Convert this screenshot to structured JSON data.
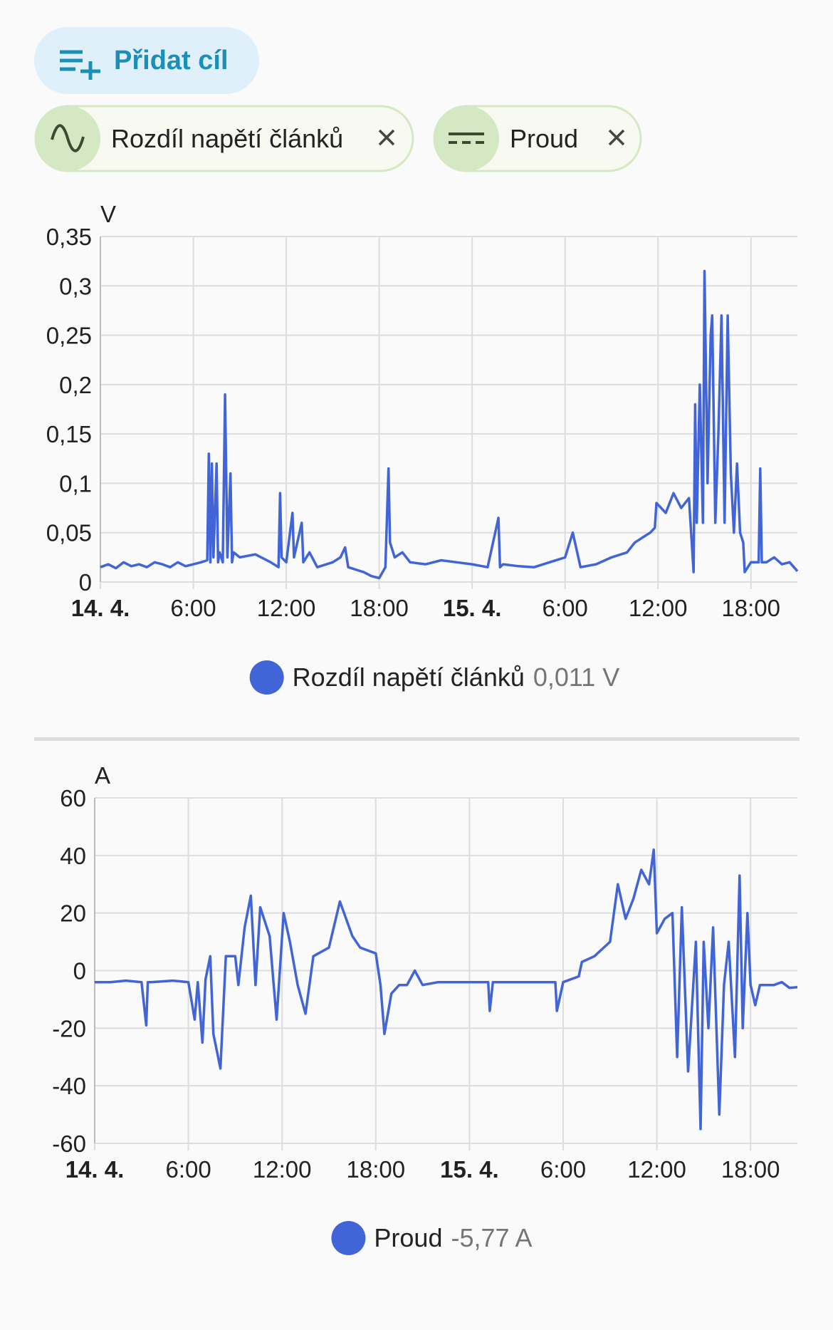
{
  "button": {
    "label": "Přidat cíl"
  },
  "chips": [
    {
      "label": "Rozdíl napětí článků"
    },
    {
      "label": "Proud"
    }
  ],
  "chart_data": [
    {
      "type": "line",
      "y_label": "V",
      "color": "#4164d6",
      "grid": true,
      "xlim": [
        0,
        45
      ],
      "xticks": [
        {
          "value": 0,
          "label": "14. 4."
        },
        {
          "value": 6,
          "label": "6:00"
        },
        {
          "value": 12,
          "label": "12:00"
        },
        {
          "value": 18,
          "label": "18:00"
        },
        {
          "value": 24,
          "label": "15. 4."
        },
        {
          "value": 30,
          "label": "6:00"
        },
        {
          "value": 36,
          "label": "12:00"
        },
        {
          "value": 42,
          "label": "18:00"
        }
      ],
      "ylim": [
        0,
        0.35
      ],
      "yticks": [
        0,
        {
          "value": 0.05,
          "label": "0,05"
        },
        {
          "value": 0.1,
          "label": "0,1"
        },
        {
          "value": 0.15,
          "label": "0,15"
        },
        {
          "value": 0.2,
          "label": "0,2"
        },
        {
          "value": 0.25,
          "label": "0,25"
        },
        {
          "value": 0.3,
          "label": "0,3"
        },
        {
          "value": 0.35,
          "label": "0,35"
        }
      ],
      "x": [
        0,
        0.5,
        1,
        1.5,
        2,
        2.5,
        3,
        3.5,
        4,
        4.5,
        5,
        5.5,
        6,
        6.5,
        6.9,
        7.0,
        7.1,
        7.2,
        7.3,
        7.5,
        7.6,
        7.7,
        7.9,
        8.05,
        8.2,
        8.4,
        8.5,
        8.6,
        9,
        10,
        11,
        11.5,
        11.6,
        11.7,
        12,
        12.4,
        12.5,
        13,
        13.1,
        13.5,
        14,
        15,
        15.5,
        15.8,
        16,
        17,
        17.5,
        18,
        18.4,
        18.6,
        18.7,
        19,
        19.5,
        20,
        21,
        22,
        23,
        24,
        25,
        25.7,
        25.8,
        26,
        27,
        28,
        29,
        30,
        30.5,
        31,
        32,
        33,
        34,
        34.5,
        35,
        35.5,
        35.8,
        35.9,
        36.5,
        37,
        37.5,
        38,
        38.3,
        38.4,
        38.5,
        38.7,
        38.9,
        39.0,
        39.2,
        39.4,
        39.5,
        39.7,
        39.9,
        40.1,
        40.3,
        40.5,
        40.7,
        40.9,
        41.1,
        41.3,
        41.5,
        41.6,
        42,
        42.5,
        42.6,
        42.7,
        43,
        43.5,
        44,
        44.5,
        45
      ],
      "series": [
        {
          "name": "Rozdíl napětí článků",
          "legend_value": "0,011 V",
          "values": [
            0.015,
            0.018,
            0.014,
            0.02,
            0.016,
            0.018,
            0.015,
            0.02,
            0.018,
            0.015,
            0.02,
            0.016,
            0.018,
            0.02,
            0.022,
            0.13,
            0.02,
            0.12,
            0.025,
            0.12,
            0.02,
            0.03,
            0.02,
            0.19,
            0.025,
            0.11,
            0.02,
            0.03,
            0.025,
            0.028,
            0.02,
            0.015,
            0.09,
            0.025,
            0.02,
            0.07,
            0.025,
            0.06,
            0.02,
            0.03,
            0.015,
            0.02,
            0.025,
            0.035,
            0.015,
            0.01,
            0.006,
            0.004,
            0.015,
            0.115,
            0.04,
            0.025,
            0.03,
            0.02,
            0.018,
            0.022,
            0.02,
            0.018,
            0.015,
            0.065,
            0.015,
            0.018,
            0.016,
            0.015,
            0.02,
            0.025,
            0.05,
            0.015,
            0.018,
            0.025,
            0.03,
            0.04,
            0.045,
            0.05,
            0.055,
            0.08,
            0.07,
            0.09,
            0.075,
            0.085,
            0.01,
            0.18,
            0.06,
            0.2,
            0.06,
            0.315,
            0.1,
            0.25,
            0.27,
            0.06,
            0.15,
            0.27,
            0.06,
            0.27,
            0.11,
            0.05,
            0.12,
            0.05,
            0.04,
            0.01,
            0.02,
            0.02,
            0.115,
            0.02,
            0.02,
            0.025,
            0.018,
            0.02,
            0.011
          ]
        }
      ]
    },
    {
      "type": "line",
      "y_label": "A",
      "color": "#4164d6",
      "grid": true,
      "xlim": [
        0,
        45
      ],
      "xticks": [
        {
          "value": 0,
          "label": "14. 4."
        },
        {
          "value": 6,
          "label": "6:00"
        },
        {
          "value": 12,
          "label": "12:00"
        },
        {
          "value": 18,
          "label": "18:00"
        },
        {
          "value": 24,
          "label": "15. 4."
        },
        {
          "value": 30,
          "label": "6:00"
        },
        {
          "value": 36,
          "label": "12:00"
        },
        {
          "value": 42,
          "label": "18:00"
        }
      ],
      "ylim": [
        -60,
        60
      ],
      "yticks": [
        -60,
        -40,
        -20,
        0,
        20,
        40,
        60
      ],
      "x": [
        0,
        1,
        2,
        3,
        3.3,
        3.4,
        3.6,
        5,
        6,
        6.4,
        6.6,
        6.9,
        7.1,
        7.4,
        7.6,
        8.05,
        8.4,
        9,
        9.2,
        9.6,
        10.0,
        10.3,
        10.6,
        11.2,
        11.65,
        12.1,
        12.5,
        13,
        13.5,
        14,
        15,
        15.7,
        16.5,
        17,
        18,
        18.3,
        18.55,
        19,
        19.5,
        20,
        20.5,
        21,
        22,
        23,
        24,
        25.2,
        25.3,
        25.5,
        27,
        29.5,
        29.6,
        30,
        31,
        31.2,
        32,
        33,
        33.5,
        34,
        34.5,
        35,
        35.5,
        35.8,
        36.0,
        36.5,
        37,
        37.3,
        37.6,
        38.0,
        38.5,
        38.8,
        39.0,
        39.3,
        39.6,
        40.0,
        40.3,
        40.6,
        41.0,
        41.3,
        41.5,
        41.8,
        42.0,
        42.3,
        42.6,
        43,
        43.5,
        44,
        44.5,
        45
      ],
      "series": [
        {
          "name": "Proud",
          "legend_value": "-5,77 A",
          "values": [
            -4,
            -4,
            -3.5,
            -4,
            -19,
            -4,
            -4,
            -3.5,
            -4,
            -17,
            -4,
            -25,
            -3,
            5,
            -22,
            -34,
            5,
            5,
            -5,
            15,
            26,
            -5,
            22,
            12,
            -17,
            20,
            10,
            -5,
            -15,
            5,
            8,
            24,
            12,
            8,
            6,
            -5,
            -22,
            -8,
            -5,
            -5,
            0,
            -5,
            -4,
            -4,
            -4,
            -4,
            -14,
            -4,
            -4,
            -4,
            -14,
            -4,
            -2,
            3,
            5,
            10,
            30,
            18,
            25,
            35,
            30,
            42,
            13,
            18,
            20,
            -30,
            22,
            -35,
            10,
            -55,
            10,
            -20,
            15,
            -50,
            -5,
            10,
            -30,
            33,
            -20,
            20,
            -5,
            -12,
            -5,
            -5,
            -5,
            -4,
            -6,
            -5.77
          ]
        }
      ]
    }
  ]
}
